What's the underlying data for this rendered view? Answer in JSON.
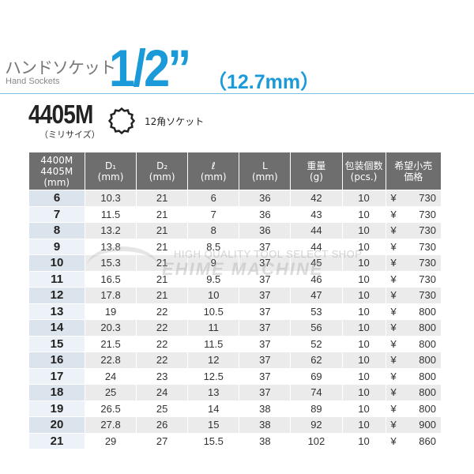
{
  "header": {
    "title_jp": "ハンドソケット",
    "title_en": "Hand Sockets",
    "size": "1/2”",
    "size_mm": "（12.7mm）"
  },
  "product": {
    "model": "4405M",
    "subtitle": "（ミリサイズ）",
    "type": "12角ソケット",
    "icon": "12-point-socket-icon"
  },
  "accent_color": "#1a9ad9",
  "watermark": {
    "line1": "HIGH QUALITY TOOL SELECT SHOP",
    "line2": "EHIME MACHINE"
  },
  "table": {
    "headers": [
      [
        "4400M",
        "4405M",
        "(mm)"
      ],
      [
        "D₁",
        "(mm)"
      ],
      [
        "D₂",
        "(mm)"
      ],
      [
        "ℓ",
        "(mm)"
      ],
      [
        "L",
        "(mm)"
      ],
      [
        "重量",
        "(g)"
      ],
      [
        "包装個数",
        "(pcs.)"
      ],
      [
        "希望小売",
        "価格"
      ]
    ],
    "currency": "¥",
    "rows": [
      [
        "6",
        "10.3",
        "21",
        "6",
        "36",
        "42",
        "10",
        "730"
      ],
      [
        "7",
        "11.5",
        "21",
        "7",
        "36",
        "43",
        "10",
        "730"
      ],
      [
        "8",
        "13.2",
        "21",
        "8",
        "36",
        "44",
        "10",
        "730"
      ],
      [
        "9",
        "13.8",
        "21",
        "8.5",
        "37",
        "44",
        "10",
        "730"
      ],
      [
        "10",
        "15.3",
        "21",
        "9",
        "37",
        "45",
        "10",
        "730"
      ],
      [
        "11",
        "16.5",
        "21",
        "9.5",
        "37",
        "46",
        "10",
        "730"
      ],
      [
        "12",
        "17.8",
        "21",
        "10",
        "37",
        "47",
        "10",
        "730"
      ],
      [
        "13",
        "19",
        "22",
        "10.5",
        "37",
        "53",
        "10",
        "800"
      ],
      [
        "14",
        "20.3",
        "22",
        "11",
        "37",
        "56",
        "10",
        "800"
      ],
      [
        "15",
        "21.5",
        "22",
        "11.5",
        "37",
        "52",
        "10",
        "800"
      ],
      [
        "16",
        "22.8",
        "22",
        "12",
        "37",
        "62",
        "10",
        "800"
      ],
      [
        "17",
        "24",
        "23",
        "12.5",
        "37",
        "69",
        "10",
        "800"
      ],
      [
        "18",
        "25",
        "24",
        "13",
        "37",
        "74",
        "10",
        "800"
      ],
      [
        "19",
        "26.5",
        "25",
        "14",
        "38",
        "89",
        "10",
        "800"
      ],
      [
        "20",
        "27.8",
        "26",
        "15",
        "38",
        "92",
        "10",
        "900"
      ],
      [
        "21",
        "29",
        "27",
        "15.5",
        "38",
        "102",
        "10",
        "860"
      ]
    ]
  }
}
